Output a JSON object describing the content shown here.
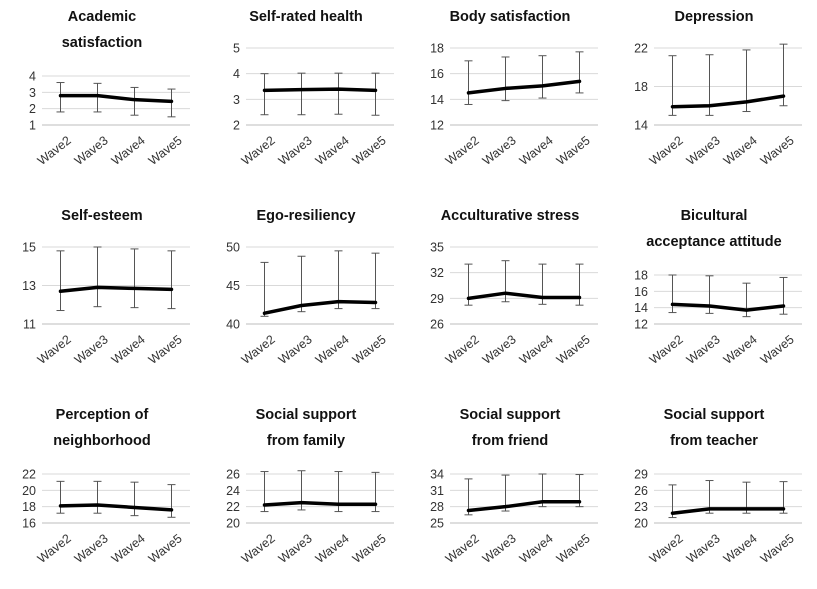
{
  "chart_data": [
    {
      "type": "line",
      "title": [
        "Academic",
        "satisfaction"
      ],
      "categories": [
        "Wave2",
        "Wave3",
        "Wave4",
        "Wave5"
      ],
      "ylim": [
        1,
        4
      ],
      "yticks": [
        1,
        2,
        3,
        4
      ],
      "values": [
        2.8,
        2.8,
        2.55,
        2.45
      ],
      "error_upper": [
        3.6,
        3.55,
        3.3,
        3.2
      ],
      "error_lower": [
        1.8,
        1.8,
        1.6,
        1.5
      ]
    },
    {
      "type": "line",
      "title": [
        "Self-rated health"
      ],
      "categories": [
        "Wave2",
        "Wave3",
        "Wave4",
        "Wave5"
      ],
      "ylim": [
        2,
        5
      ],
      "yticks": [
        2,
        3,
        4,
        5
      ],
      "values": [
        3.35,
        3.38,
        3.4,
        3.35
      ],
      "error_upper": [
        4.0,
        4.02,
        4.02,
        4.02
      ],
      "error_lower": [
        2.4,
        2.4,
        2.42,
        2.38
      ]
    },
    {
      "type": "line",
      "title": [
        "Body satisfaction"
      ],
      "categories": [
        "Wave2",
        "Wave3",
        "Wave4",
        "Wave5"
      ],
      "ylim": [
        12,
        18
      ],
      "yticks": [
        12,
        14,
        16,
        18
      ],
      "values": [
        14.5,
        14.85,
        15.05,
        15.4
      ],
      "error_upper": [
        17.0,
        17.3,
        17.4,
        17.7
      ],
      "error_lower": [
        13.6,
        13.9,
        14.1,
        14.5
      ]
    },
    {
      "type": "line",
      "title": [
        "Depression"
      ],
      "categories": [
        "Wave2",
        "Wave3",
        "Wave4",
        "Wave5"
      ],
      "ylim": [
        14,
        22
      ],
      "yticks": [
        14,
        18,
        22
      ],
      "values": [
        15.9,
        16.0,
        16.4,
        17.0
      ],
      "error_upper": [
        21.2,
        21.3,
        21.8,
        22.4
      ],
      "error_lower": [
        15.0,
        15.0,
        15.4,
        16.0
      ]
    },
    {
      "type": "line",
      "title": [
        "Self-esteem"
      ],
      "categories": [
        "Wave2",
        "Wave3",
        "Wave4",
        "Wave5"
      ],
      "ylim": [
        11,
        15
      ],
      "yticks": [
        11,
        13,
        15
      ],
      "values": [
        12.7,
        12.9,
        12.85,
        12.8
      ],
      "error_upper": [
        14.8,
        15.0,
        14.9,
        14.8
      ],
      "error_lower": [
        11.7,
        11.9,
        11.85,
        11.8
      ]
    },
    {
      "type": "line",
      "title": [
        "Ego-resiliency"
      ],
      "categories": [
        "Wave2",
        "Wave3",
        "Wave4",
        "Wave5"
      ],
      "ylim": [
        40,
        50
      ],
      "yticks": [
        40,
        45,
        50
      ],
      "values": [
        41.4,
        42.4,
        42.9,
        42.8
      ],
      "error_upper": [
        48.0,
        48.8,
        49.5,
        49.2
      ],
      "error_lower": [
        41.0,
        41.6,
        42.0,
        42.0
      ]
    },
    {
      "type": "line",
      "title": [
        "Acculturative stress"
      ],
      "categories": [
        "Wave2",
        "Wave3",
        "Wave4",
        "Wave5"
      ],
      "ylim": [
        26,
        35
      ],
      "yticks": [
        26,
        29,
        32,
        35
      ],
      "values": [
        29.0,
        29.6,
        29.1,
        29.1
      ],
      "error_upper": [
        33.0,
        33.4,
        33.0,
        33.0
      ],
      "error_lower": [
        28.2,
        28.6,
        28.3,
        28.2
      ]
    },
    {
      "type": "line",
      "title": [
        "Bicultural",
        "acceptance attitude"
      ],
      "categories": [
        "Wave2",
        "Wave3",
        "Wave4",
        "Wave5"
      ],
      "ylim": [
        12,
        18
      ],
      "yticks": [
        12,
        14,
        16,
        18
      ],
      "values": [
        14.4,
        14.2,
        13.7,
        14.2
      ],
      "error_upper": [
        18.0,
        17.9,
        17.0,
        17.7
      ],
      "error_lower": [
        13.4,
        13.3,
        12.9,
        13.2
      ]
    },
    {
      "type": "line",
      "title": [
        "Perception of",
        "neighborhood"
      ],
      "categories": [
        "Wave2",
        "Wave3",
        "Wave4",
        "Wave5"
      ],
      "ylim": [
        16,
        22
      ],
      "yticks": [
        16,
        18,
        20,
        22
      ],
      "values": [
        18.1,
        18.2,
        17.9,
        17.6
      ],
      "error_upper": [
        21.1,
        21.1,
        21.0,
        20.7
      ],
      "error_lower": [
        17.2,
        17.2,
        16.9,
        16.7
      ]
    },
    {
      "type": "line",
      "title": [
        "Social support",
        "from family"
      ],
      "categories": [
        "Wave2",
        "Wave3",
        "Wave4",
        "Wave5"
      ],
      "ylim": [
        20,
        26
      ],
      "yticks": [
        20,
        22,
        24,
        26
      ],
      "values": [
        22.2,
        22.5,
        22.3,
        22.3
      ],
      "error_upper": [
        26.3,
        26.4,
        26.3,
        26.2
      ],
      "error_lower": [
        21.4,
        21.6,
        21.4,
        21.4
      ]
    },
    {
      "type": "line",
      "title": [
        "Social support",
        "from friend"
      ],
      "categories": [
        "Wave2",
        "Wave3",
        "Wave4",
        "Wave5"
      ],
      "ylim": [
        25,
        34
      ],
      "yticks": [
        25,
        28,
        31,
        34
      ],
      "values": [
        27.3,
        28.0,
        28.9,
        28.9
      ],
      "error_upper": [
        33.1,
        33.8,
        34.0,
        33.9
      ],
      "error_lower": [
        26.5,
        27.2,
        28.0,
        28.0
      ]
    },
    {
      "type": "line",
      "title": [
        "Social support",
        "from teacher"
      ],
      "categories": [
        "Wave2",
        "Wave3",
        "Wave4",
        "Wave5"
      ],
      "ylim": [
        20,
        29
      ],
      "yticks": [
        20,
        23,
        26,
        29
      ],
      "values": [
        21.8,
        22.6,
        22.6,
        22.6
      ],
      "error_upper": [
        27.0,
        27.8,
        27.5,
        27.6
      ],
      "error_lower": [
        21.0,
        21.8,
        21.8,
        21.8
      ]
    }
  ]
}
